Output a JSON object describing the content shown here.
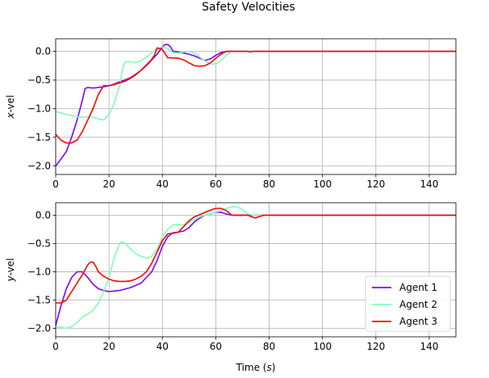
{
  "title": "Safety Velocities",
  "chart_data": [
    {
      "type": "line",
      "ylabel": "x-vel",
      "xlabel": "",
      "xlim": [
        0,
        150
      ],
      "ylim": [
        -2.15,
        0.22
      ],
      "xticks": [
        0,
        20,
        40,
        60,
        80,
        100,
        120,
        140
      ],
      "xtick_labels": [
        "0",
        "20",
        "40",
        "60",
        "80",
        "100",
        "120",
        "140"
      ],
      "yticks": [
        0,
        -0.5,
        -1,
        -1.5,
        -2
      ],
      "ytick_labels": [
        "0.0",
        "−0.5",
        "−1.0",
        "−1.5",
        "−2.0"
      ],
      "grid": true,
      "series": [
        {
          "name": "Agent 1",
          "color": "#7f00ff",
          "x": [
            0,
            2,
            4,
            6,
            8,
            10,
            11,
            12,
            14,
            16,
            18,
            20,
            22,
            24,
            26,
            28,
            30,
            32,
            34,
            36,
            38,
            40,
            41,
            42,
            43,
            44,
            46,
            48,
            50,
            52,
            54,
            56,
            58,
            60,
            62,
            64,
            66,
            70,
            75,
            80,
            100,
            120,
            150
          ],
          "y": [
            -2.0,
            -1.88,
            -1.75,
            -1.5,
            -1.2,
            -0.85,
            -0.65,
            -0.63,
            -0.64,
            -0.63,
            -0.62,
            -0.6,
            -0.57,
            -0.53,
            -0.5,
            -0.46,
            -0.4,
            -0.33,
            -0.25,
            -0.15,
            -0.05,
            0.08,
            0.12,
            0.12,
            0.08,
            0.0,
            -0.01,
            -0.03,
            -0.05,
            -0.08,
            -0.12,
            -0.16,
            -0.13,
            -0.07,
            -0.02,
            0.0,
            0.0,
            0.0,
            0.0,
            0.0,
            0.0,
            0.0,
            0.0
          ]
        },
        {
          "name": "Agent 2",
          "color": "#80ffb4",
          "x": [
            0,
            4,
            8,
            12,
            14,
            16,
            18,
            20,
            22,
            24,
            25,
            26,
            28,
            30,
            32,
            34,
            36,
            38,
            40,
            42,
            44,
            46,
            48,
            50,
            52,
            54,
            56,
            58,
            60,
            62,
            64,
            66,
            70,
            75,
            80,
            100,
            120,
            150
          ],
          "y": [
            -1.05,
            -1.1,
            -1.14,
            -1.15,
            -1.15,
            -1.18,
            -1.2,
            -1.1,
            -0.9,
            -0.6,
            -0.3,
            -0.18,
            -0.18,
            -0.2,
            -0.16,
            -0.1,
            -0.03,
            0.05,
            0.08,
            0.05,
            -0.02,
            -0.03,
            -0.01,
            0.0,
            -0.03,
            -0.1,
            -0.17,
            -0.22,
            -0.22,
            -0.16,
            -0.06,
            0.0,
            0.0,
            0.0,
            0.0,
            0.0,
            0.0,
            0.0
          ]
        },
        {
          "name": "Agent 3",
          "color": "#ff0000",
          "x": [
            0,
            2,
            4,
            6,
            8,
            10,
            12,
            14,
            16,
            18,
            20,
            22,
            24,
            26,
            28,
            30,
            32,
            34,
            36,
            37,
            38,
            40,
            42,
            46,
            48,
            50,
            52,
            54,
            56,
            58,
            60,
            62,
            64,
            66,
            70,
            72,
            73,
            74,
            76,
            80,
            100,
            120,
            150
          ],
          "y": [
            -1.45,
            -1.55,
            -1.6,
            -1.6,
            -1.55,
            -1.4,
            -1.2,
            -1.0,
            -0.75,
            -0.6,
            -0.6,
            -0.58,
            -0.55,
            -0.52,
            -0.47,
            -0.41,
            -0.33,
            -0.24,
            -0.14,
            -0.07,
            0.06,
            0.03,
            -0.11,
            -0.12,
            -0.15,
            -0.2,
            -0.25,
            -0.26,
            -0.25,
            -0.2,
            -0.12,
            -0.05,
            0.0,
            0.0,
            0.0,
            0.0,
            -0.01,
            0.0,
            0.0,
            0.0,
            0.0,
            0.0,
            0.0
          ]
        }
      ]
    },
    {
      "type": "line",
      "ylabel": "y-vel",
      "xlabel": "Time (s)",
      "xlim": [
        0,
        150
      ],
      "ylim": [
        -2.15,
        0.22
      ],
      "xticks": [
        0,
        20,
        40,
        60,
        80,
        100,
        120,
        140
      ],
      "xtick_labels": [
        "0",
        "20",
        "40",
        "60",
        "80",
        "100",
        "120",
        "140"
      ],
      "yticks": [
        0,
        -0.5,
        -1,
        -1.5,
        -2
      ],
      "ytick_labels": [
        "0.0",
        "−0.5",
        "−1.0",
        "−1.5",
        "−2.0"
      ],
      "grid": true,
      "legend_position": "lower-right",
      "series": [
        {
          "name": "Agent 1",
          "color": "#7f00ff",
          "x": [
            0,
            2,
            4,
            6,
            8,
            10,
            12,
            14,
            16,
            18,
            20,
            24,
            28,
            32,
            36,
            38,
            40,
            42,
            44,
            46,
            48,
            50,
            52,
            54,
            56,
            58,
            60,
            62,
            64,
            66,
            70,
            75,
            80,
            100,
            120,
            150
          ],
          "y": [
            -1.95,
            -1.6,
            -1.3,
            -1.1,
            -1.0,
            -1.0,
            -1.1,
            -1.22,
            -1.3,
            -1.33,
            -1.35,
            -1.33,
            -1.28,
            -1.2,
            -1.0,
            -0.8,
            -0.55,
            -0.38,
            -0.31,
            -0.3,
            -0.28,
            -0.22,
            -0.12,
            -0.05,
            0.0,
            0.02,
            0.05,
            0.05,
            0.02,
            0.0,
            0.0,
            0.0,
            0.0,
            0.0,
            0.0,
            0.0
          ]
        },
        {
          "name": "Agent 2",
          "color": "#80ffb4",
          "x": [
            0,
            2,
            4,
            6,
            8,
            10,
            12,
            14,
            16,
            18,
            20,
            22,
            24,
            25,
            26,
            28,
            30,
            32,
            34,
            36,
            38,
            40,
            42,
            44,
            46,
            48,
            50,
            52,
            54,
            56,
            58,
            60,
            62,
            64,
            66,
            68,
            70,
            72,
            74,
            76,
            80,
            100,
            120,
            150
          ],
          "y": [
            -1.97,
            -1.98,
            -2.0,
            -1.97,
            -1.9,
            -1.8,
            -1.75,
            -1.68,
            -1.55,
            -1.35,
            -1.1,
            -0.75,
            -0.5,
            -0.47,
            -0.5,
            -0.6,
            -0.68,
            -0.73,
            -0.76,
            -0.73,
            -0.6,
            -0.38,
            -0.25,
            -0.17,
            -0.17,
            -0.17,
            -0.13,
            -0.08,
            -0.03,
            0.0,
            0.02,
            0.05,
            0.08,
            0.12,
            0.15,
            0.15,
            0.1,
            0.02,
            0.0,
            0.0,
            0.0,
            0.0,
            0.0,
            0.0
          ]
        },
        {
          "name": "Agent 3",
          "color": "#ff0000",
          "x": [
            0,
            2,
            4,
            6,
            8,
            10,
            12,
            13,
            14,
            15,
            16,
            18,
            20,
            22,
            24,
            26,
            28,
            30,
            32,
            34,
            36,
            38,
            40,
            42,
            44,
            46,
            48,
            50,
            52,
            54,
            56,
            58,
            60,
            62,
            64,
            66,
            70,
            72,
            74,
            75,
            76,
            78,
            80,
            100,
            120,
            150
          ],
          "y": [
            -1.55,
            -1.55,
            -1.5,
            -1.35,
            -1.2,
            -1.05,
            -0.88,
            -0.83,
            -0.83,
            -0.9,
            -1.0,
            -1.08,
            -1.13,
            -1.16,
            -1.17,
            -1.17,
            -1.16,
            -1.13,
            -1.08,
            -1.0,
            -0.85,
            -0.65,
            -0.45,
            -0.33,
            -0.32,
            -0.3,
            -0.2,
            -0.1,
            -0.03,
            0.01,
            0.05,
            0.09,
            0.12,
            0.12,
            0.08,
            0.0,
            0.0,
            0.0,
            -0.04,
            -0.05,
            -0.03,
            0.0,
            0.0,
            0.0,
            0.0,
            0.0
          ]
        }
      ]
    }
  ]
}
